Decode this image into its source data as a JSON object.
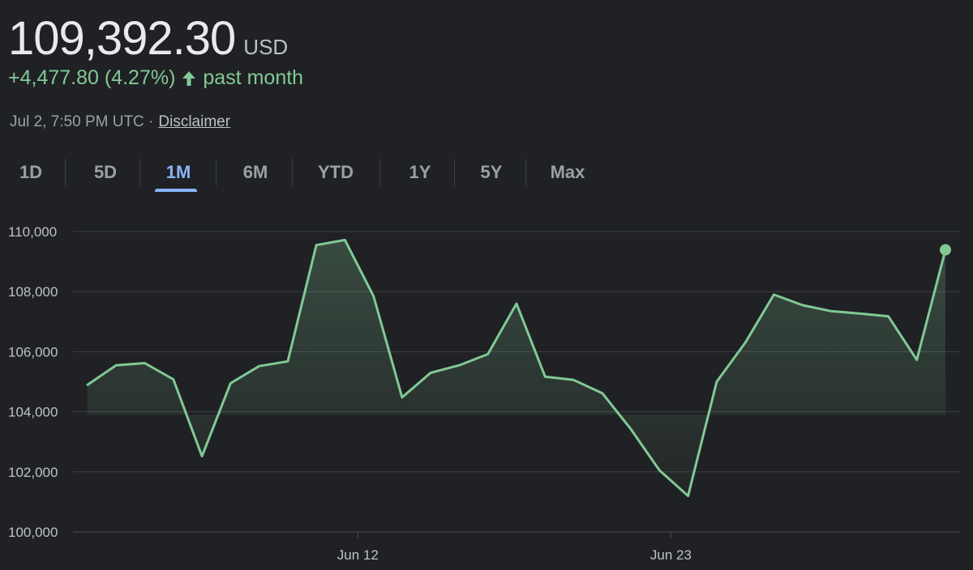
{
  "quote": {
    "price": "109,392.30",
    "currency": "USD",
    "change": "+4,477.80 (4.27%)",
    "period": "past month",
    "timestamp": "Jul 2, 7:50 PM UTC ·",
    "disclaimer": "Disclaimer"
  },
  "tabs": [
    {
      "label": "1D",
      "active": false
    },
    {
      "label": "5D",
      "active": false
    },
    {
      "label": "1M",
      "active": true
    },
    {
      "label": "6M",
      "active": false
    },
    {
      "label": "YTD",
      "active": false
    },
    {
      "label": "1Y",
      "active": false
    },
    {
      "label": "5Y",
      "active": false
    },
    {
      "label": "Max",
      "active": false
    }
  ],
  "colors": {
    "line": "#81c995",
    "active_tab": "#8ab4f8",
    "grid": "#3c4043",
    "axis_text": "#bdc1c6"
  },
  "icons": {
    "change_direction": "arrow-up-icon"
  },
  "chart_data": {
    "type": "line",
    "ylim": [
      100000,
      110000
    ],
    "yticks": [
      110000,
      108000,
      106000,
      104000,
      102000,
      100000
    ],
    "ytick_labels": [
      "110,000",
      "108,000",
      "106,000",
      "104,000",
      "102,000",
      "100,000"
    ],
    "xtick_labels": [
      "Jun 12",
      "Jun 23"
    ],
    "grid": true,
    "series": [
      {
        "values": [
          104900,
          105550,
          105620,
          105080,
          102520,
          104950,
          105520,
          105680,
          109550,
          109720,
          107850,
          104480,
          105300,
          105550,
          105920,
          107600,
          105170,
          105060,
          104620,
          103420,
          102050,
          101200,
          105000,
          106300,
          107900,
          107550,
          107350,
          107270,
          107180,
          105730,
          109392.3
        ]
      }
    ]
  }
}
